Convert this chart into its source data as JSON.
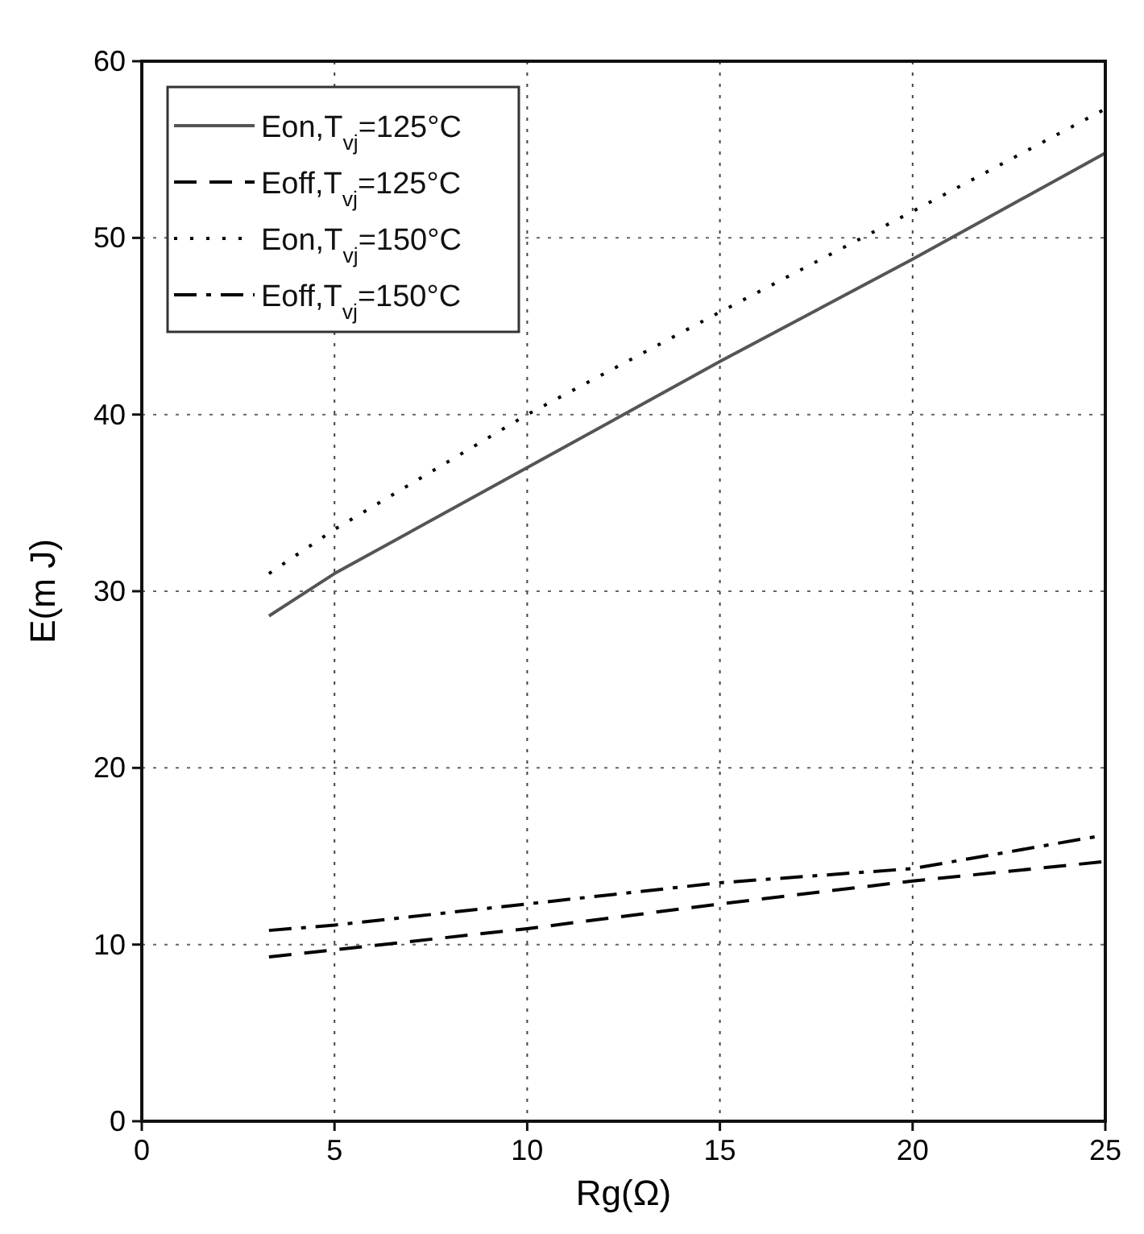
{
  "chart_data": {
    "type": "line",
    "xlabel": "Rg(Ω)",
    "ylabel": "E(m J)",
    "xlim": [
      0,
      25
    ],
    "ylim": [
      0,
      60
    ],
    "xticks": [
      0,
      5,
      10,
      15,
      20,
      25
    ],
    "yticks": [
      0,
      10,
      20,
      30,
      40,
      50,
      60
    ],
    "grid": true,
    "legend": "top left",
    "marker": "none",
    "series": [
      {
        "name": "Eon,T$_{vj}$=125°C",
        "color": "#555555",
        "line_style": "solid",
        "x": [
          3.3,
          5,
          10,
          15,
          20,
          25
        ],
        "values": [
          28.6,
          31,
          37,
          43,
          48.8,
          54.8
        ]
      },
      {
        "name": "Eoff,T$_{vj}$=125°C",
        "color": "#000000",
        "line_style": "dashed",
        "x": [
          3.3,
          5,
          10,
          15,
          20,
          25
        ],
        "values": [
          9.3,
          9.7,
          10.9,
          12.3,
          13.6,
          14.7
        ]
      },
      {
        "name": "Eon,T$_{vj}$=150°C",
        "color": "#000000",
        "line_style": "dotted",
        "x": [
          3.3,
          5,
          10,
          15,
          20,
          25
        ],
        "values": [
          31,
          33.5,
          40,
          45.8,
          51.5,
          57.3
        ]
      },
      {
        "name": "Eoff,T$_{vj}$=150°C",
        "color": "#000000",
        "line_style": "dashdot",
        "x": [
          3.3,
          5,
          10,
          15,
          20,
          25
        ],
        "values": [
          10.8,
          11.1,
          12.3,
          13.5,
          14.3,
          16.2
        ]
      }
    ]
  }
}
